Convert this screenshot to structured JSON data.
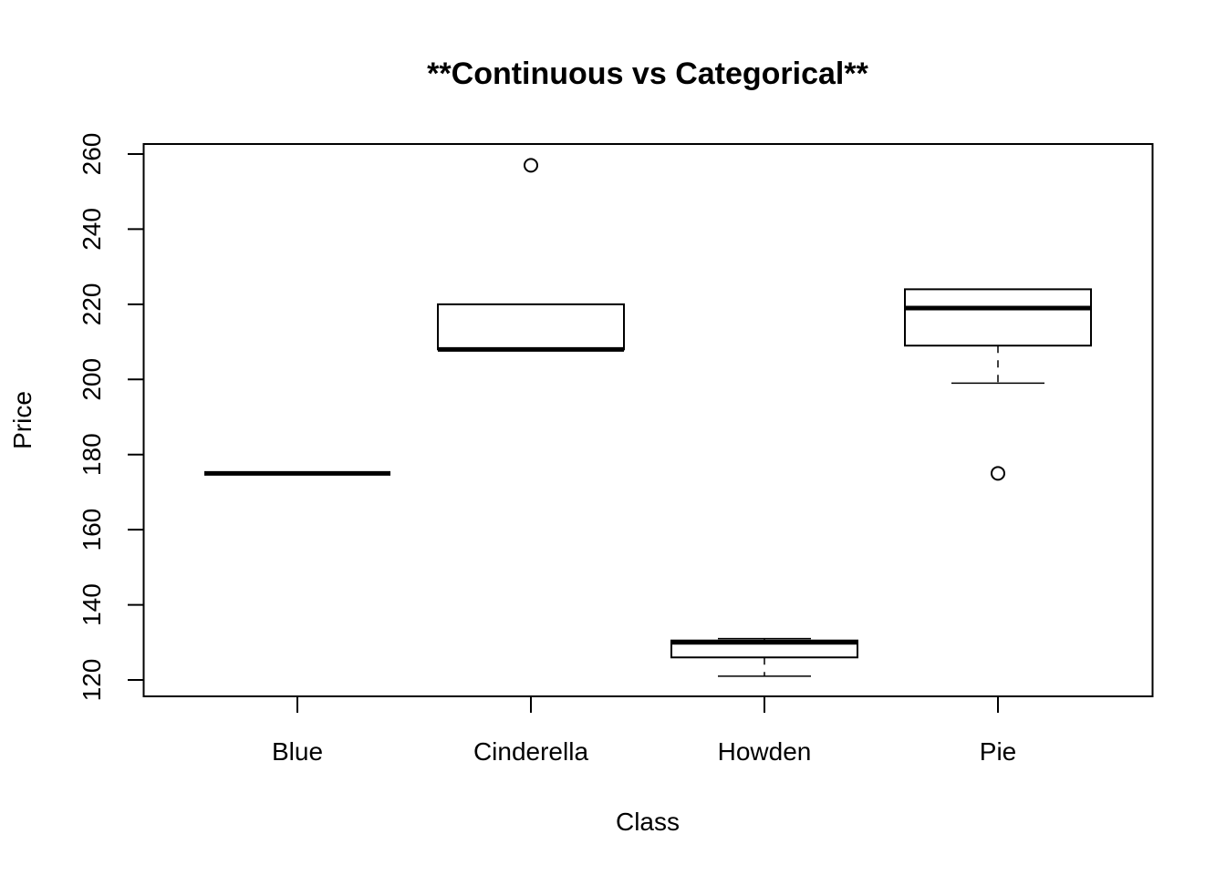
{
  "chart_data": {
    "type": "boxplot",
    "title": "**Continuous vs Categorical**",
    "xlabel": "Class",
    "ylabel": "Price",
    "categories": [
      "Blue",
      "Cinderella",
      "Howden",
      "Pie"
    ],
    "ylim": [
      116,
      263
    ],
    "yticks": [
      120,
      140,
      160,
      180,
      200,
      220,
      240,
      260
    ],
    "ytick_labels": [
      "120",
      "140",
      "160",
      "180",
      "200",
      "220",
      "240",
      "260"
    ],
    "boxes": [
      {
        "category": "Blue",
        "whisker_low": 175,
        "q1": 175,
        "median": 175,
        "q3": 175,
        "whisker_high": 175,
        "outliers": []
      },
      {
        "category": "Cinderella",
        "whisker_low": 208,
        "q1": 208,
        "median": 208,
        "q3": 220,
        "whisker_high": 220,
        "outliers": [
          257
        ]
      },
      {
        "category": "Howden",
        "whisker_low": 121,
        "q1": 126,
        "median": 130,
        "q3": 130.5,
        "whisker_high": 131,
        "outliers": []
      },
      {
        "category": "Pie",
        "whisker_low": 199,
        "q1": 209,
        "median": 219,
        "q3": 224,
        "whisker_high": 224,
        "outliers": [
          175
        ]
      }
    ],
    "grid": false,
    "legend": "none",
    "colors": {
      "line": "#000000",
      "box_fill": "#ffffff",
      "background": "#ffffff"
    }
  }
}
